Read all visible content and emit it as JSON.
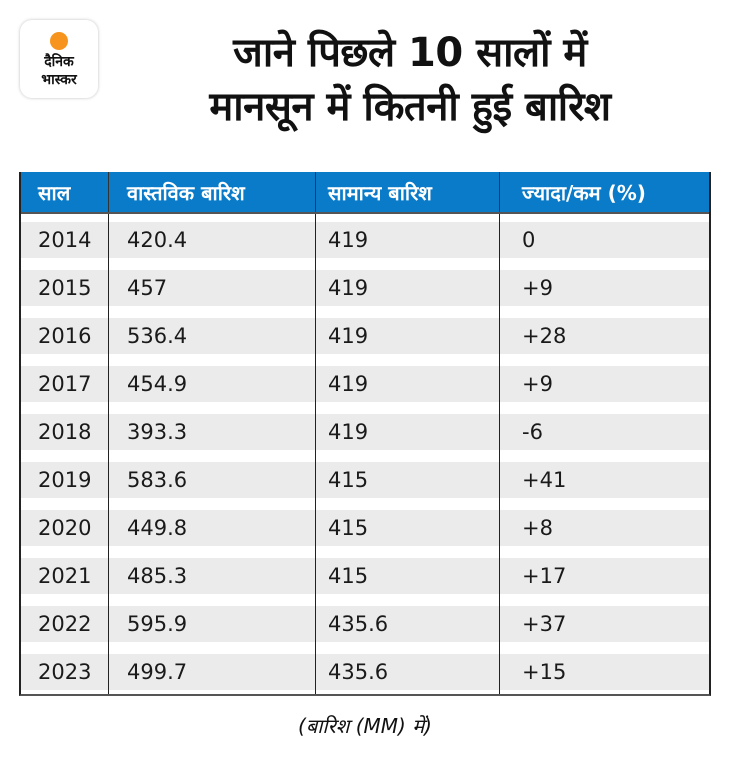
{
  "brand": {
    "name_line1": "दैनिक",
    "name_line2": "भास्कर",
    "accent_color": "#f7941d"
  },
  "title": {
    "line1": "जाने पिछले 10 सालों में",
    "line2": "मानसून में कितनी हुई बारिश"
  },
  "table": {
    "header_color": "#0a7bc8",
    "columns": [
      "साल",
      "वास्तविक बारिश",
      "सामान्य बारिश",
      "ज्यादा/कम (%)"
    ],
    "rows": [
      {
        "year": "2014",
        "actual": "420.4",
        "normal": "419",
        "change": "0"
      },
      {
        "year": "2015",
        "actual": "457",
        "normal": "419",
        "change": "+9"
      },
      {
        "year": "2016",
        "actual": "536.4",
        "normal": "419",
        "change": "+28"
      },
      {
        "year": "2017",
        "actual": "454.9",
        "normal": "419",
        "change": "+9"
      },
      {
        "year": "2018",
        "actual": "393.3",
        "normal": "419",
        "change": "-6"
      },
      {
        "year": "2019",
        "actual": "583.6",
        "normal": "415",
        "change": "+41"
      },
      {
        "year": "2020",
        "actual": "449.8",
        "normal": "415",
        "change": "+8"
      },
      {
        "year": "2021",
        "actual": "485.3",
        "normal": "415",
        "change": "+17"
      },
      {
        "year": "2022",
        "actual": "595.9",
        "normal": "435.6",
        "change": "+37"
      },
      {
        "year": "2023",
        "actual": "499.7",
        "normal": "435.6",
        "change": "+15"
      }
    ]
  },
  "footnote": "(बारिश (MM) में)"
}
